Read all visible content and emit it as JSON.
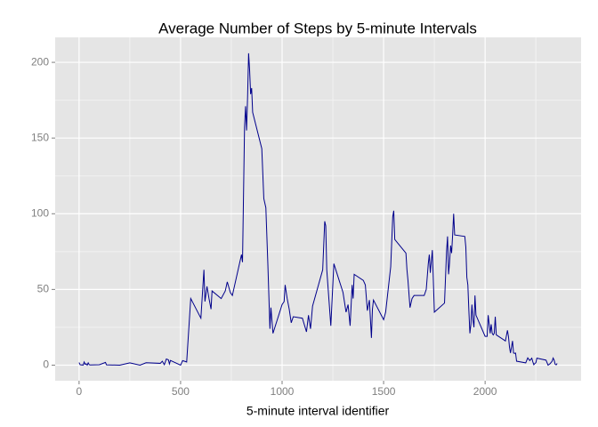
{
  "chart_data": {
    "type": "line",
    "title": "Average Number of Steps by 5-minute Intervals",
    "xlabel": "5-minute interval identifier",
    "x": [
      0,
      5,
      10,
      15,
      20,
      25,
      30,
      35,
      40,
      45,
      50,
      55,
      100,
      130,
      135,
      200,
      250,
      300,
      330,
      400,
      410,
      420,
      430,
      440,
      445,
      450,
      500,
      510,
      530,
      550,
      600,
      615,
      620,
      630,
      640,
      650,
      655,
      700,
      720,
      730,
      745,
      755,
      800,
      805,
      815,
      820,
      825,
      830,
      835,
      840,
      845,
      850,
      855,
      900,
      910,
      920,
      930,
      940,
      945,
      955,
      1000,
      1010,
      1015,
      1025,
      1035,
      1045,
      1055,
      1100,
      1120,
      1130,
      1140,
      1150,
      1200,
      1210,
      1215,
      1220,
      1240,
      1255,
      1300,
      1315,
      1325,
      1335,
      1345,
      1350,
      1355,
      1400,
      1410,
      1420,
      1430,
      1440,
      1445,
      1450,
      1500,
      1510,
      1535,
      1545,
      1550,
      1555,
      1610,
      1615,
      1620,
      1630,
      1640,
      1650,
      1700,
      1710,
      1720,
      1725,
      1730,
      1740,
      1745,
      1750,
      1800,
      1805,
      1810,
      1815,
      1820,
      1825,
      1830,
      1835,
      1840,
      1845,
      1850,
      1900,
      1905,
      1910,
      1915,
      1920,
      1925,
      1930,
      1935,
      1940,
      1945,
      1950,
      1955,
      2000,
      2005,
      2010,
      2015,
      2020,
      2025,
      2030,
      2035,
      2040,
      2045,
      2050,
      2055,
      2100,
      2110,
      2115,
      2120,
      2125,
      2135,
      2140,
      2145,
      2150,
      2155,
      2200,
      2210,
      2220,
      2230,
      2235,
      2240,
      2245,
      2250,
      2255,
      2300,
      2310,
      2320,
      2330,
      2335,
      2340,
      2345,
      2350,
      2355
    ],
    "series": [
      {
        "name": "steps",
        "color": "#00008b",
        "values": [
          1.7,
          0.3,
          0.1,
          0.2,
          0,
          2.1,
          0.5,
          0.9,
          0,
          1.5,
          0.3,
          0.1,
          0.3,
          1.8,
          0.2,
          0,
          1.5,
          0,
          1.6,
          1.2,
          2.6,
          0.3,
          4.1,
          3.5,
          0.8,
          3.1,
          0,
          3,
          2.1,
          44,
          31,
          63,
          42,
          52,
          44,
          37,
          49,
          44,
          49,
          55,
          48,
          46,
          73,
          68,
          157,
          171,
          155,
          177,
          206,
          195,
          179,
          183,
          167,
          143,
          110,
          104,
          66,
          24,
          38,
          21,
          40,
          42,
          53,
          44,
          37,
          28,
          32,
          31,
          22,
          33,
          24,
          39,
          63,
          95,
          92,
          63,
          26,
          67,
          48,
          35,
          40,
          26,
          53,
          44,
          60,
          56,
          53,
          36,
          43,
          18,
          37,
          43,
          30,
          35,
          65,
          98,
          102,
          83,
          74,
          63,
          56,
          38,
          44,
          46,
          46,
          50,
          67,
          73,
          61,
          76,
          56,
          35,
          41,
          58,
          75,
          85,
          60,
          68,
          79,
          74,
          86,
          100,
          86,
          85,
          78,
          58,
          53,
          36,
          21,
          27,
          40,
          30,
          25,
          46,
          33,
          19,
          19,
          19,
          33,
          27,
          21,
          27,
          21,
          20,
          21,
          32,
          20,
          16,
          23,
          19,
          12,
          8,
          16,
          8,
          7.8,
          8,
          2.6,
          1.5,
          4.8,
          3,
          4.6,
          2.2,
          0.3,
          1.1,
          1.6,
          4.6,
          3.3,
          0,
          0.96,
          2.6,
          4.7,
          3.3,
          0.6,
          0.2,
          1.1
        ]
      }
    ],
    "xlim": [
      -117.75,
      2472.75
    ],
    "xticks": [
      0,
      500,
      1000,
      1500,
      2000
    ],
    "xminorticks": [
      250,
      750,
      1250,
      1750,
      2250
    ],
    "ylim": [
      -10.3,
      216.5
    ],
    "yticks": [
      0,
      50,
      100,
      150,
      200
    ],
    "yminorticks": [
      25,
      75,
      125,
      175
    ],
    "grid": true,
    "background": "#e5e5e5"
  }
}
